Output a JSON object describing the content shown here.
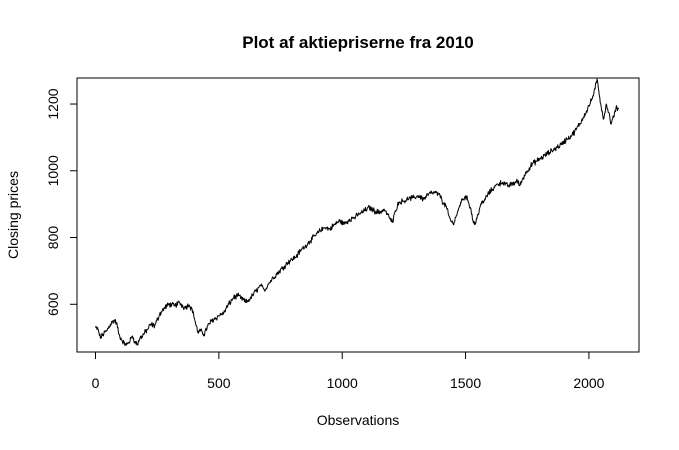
{
  "chart_data": {
    "type": "line",
    "title": "Plot af aktiepriserne fra 2010",
    "xlabel": "Observations",
    "ylabel": "Closing prices",
    "xlim": [
      -75,
      2203
    ],
    "ylim": [
      457,
      1278
    ],
    "x_ticks": [
      0,
      500,
      1000,
      1500,
      2000
    ],
    "y_ticks": [
      600,
      800,
      1000,
      1200
    ],
    "grid": false,
    "legend": "none",
    "series": [
      {
        "name": "Closing prices",
        "color": "#000000",
        "anchors": [
          [
            0,
            530
          ],
          [
            10,
            525
          ],
          [
            20,
            498
          ],
          [
            30,
            510
          ],
          [
            45,
            520
          ],
          [
            60,
            540
          ],
          [
            75,
            552
          ],
          [
            85,
            545
          ],
          [
            95,
            510
          ],
          [
            105,
            495
          ],
          [
            115,
            485
          ],
          [
            125,
            478
          ],
          [
            140,
            490
          ],
          [
            150,
            505
          ],
          [
            160,
            488
          ],
          [
            170,
            480
          ],
          [
            180,
            498
          ],
          [
            195,
            510
          ],
          [
            210,
            525
          ],
          [
            225,
            540
          ],
          [
            240,
            535
          ],
          [
            260,
            570
          ],
          [
            280,
            590
          ],
          [
            300,
            600
          ],
          [
            320,
            595
          ],
          [
            340,
            605
          ],
          [
            360,
            590
          ],
          [
            380,
            598
          ],
          [
            395,
            580
          ],
          [
            405,
            545
          ],
          [
            415,
            515
          ],
          [
            425,
            520
          ],
          [
            440,
            510
          ],
          [
            455,
            535
          ],
          [
            470,
            550
          ],
          [
            480,
            555
          ],
          [
            500,
            565
          ],
          [
            520,
            575
          ],
          [
            540,
            600
          ],
          [
            560,
            620
          ],
          [
            575,
            625
          ],
          [
            590,
            620
          ],
          [
            610,
            605
          ],
          [
            630,
            620
          ],
          [
            650,
            640
          ],
          [
            670,
            655
          ],
          [
            685,
            640
          ],
          [
            700,
            660
          ],
          [
            720,
            680
          ],
          [
            740,
            695
          ],
          [
            760,
            710
          ],
          [
            780,
            725
          ],
          [
            795,
            735
          ],
          [
            810,
            740
          ],
          [
            830,
            760
          ],
          [
            850,
            775
          ],
          [
            870,
            790
          ],
          [
            890,
            805
          ],
          [
            910,
            820
          ],
          [
            930,
            830
          ],
          [
            950,
            825
          ],
          [
            970,
            840
          ],
          [
            990,
            850
          ],
          [
            1010,
            840
          ],
          [
            1030,
            855
          ],
          [
            1050,
            860
          ],
          [
            1070,
            870
          ],
          [
            1090,
            880
          ],
          [
            1110,
            890
          ],
          [
            1130,
            880
          ],
          [
            1150,
            875
          ],
          [
            1170,
            885
          ],
          [
            1190,
            860
          ],
          [
            1205,
            845
          ],
          [
            1215,
            880
          ],
          [
            1230,
            905
          ],
          [
            1250,
            910
          ],
          [
            1270,
            915
          ],
          [
            1290,
            920
          ],
          [
            1310,
            925
          ],
          [
            1330,
            915
          ],
          [
            1350,
            930
          ],
          [
            1370,
            935
          ],
          [
            1390,
            930
          ],
          [
            1400,
            925
          ],
          [
            1410,
            900
          ],
          [
            1420,
            895
          ],
          [
            1430,
            870
          ],
          [
            1440,
            850
          ],
          [
            1450,
            840
          ],
          [
            1460,
            860
          ],
          [
            1470,
            880
          ],
          [
            1480,
            905
          ],
          [
            1490,
            915
          ],
          [
            1500,
            925
          ],
          [
            1510,
            910
          ],
          [
            1520,
            890
          ],
          [
            1530,
            850
          ],
          [
            1540,
            840
          ],
          [
            1550,
            870
          ],
          [
            1560,
            895
          ],
          [
            1575,
            910
          ],
          [
            1590,
            930
          ],
          [
            1610,
            945
          ],
          [
            1630,
            960
          ],
          [
            1650,
            965
          ],
          [
            1670,
            955
          ],
          [
            1690,
            960
          ],
          [
            1710,
            970
          ],
          [
            1720,
            955
          ],
          [
            1730,
            975
          ],
          [
            1750,
            1000
          ],
          [
            1770,
            1020
          ],
          [
            1790,
            1030
          ],
          [
            1810,
            1040
          ],
          [
            1830,
            1050
          ],
          [
            1850,
            1060
          ],
          [
            1870,
            1070
          ],
          [
            1890,
            1080
          ],
          [
            1910,
            1095
          ],
          [
            1930,
            1105
          ],
          [
            1950,
            1125
          ],
          [
            1970,
            1150
          ],
          [
            1990,
            1180
          ],
          [
            2010,
            1210
          ],
          [
            2025,
            1245
          ],
          [
            2033,
            1275
          ],
          [
            2040,
            1240
          ],
          [
            2050,
            1190
          ],
          [
            2060,
            1155
          ],
          [
            2070,
            1200
          ],
          [
            2080,
            1175
          ],
          [
            2090,
            1140
          ],
          [
            2100,
            1160
          ],
          [
            2110,
            1190
          ],
          [
            2120,
            1185
          ]
        ]
      }
    ]
  }
}
